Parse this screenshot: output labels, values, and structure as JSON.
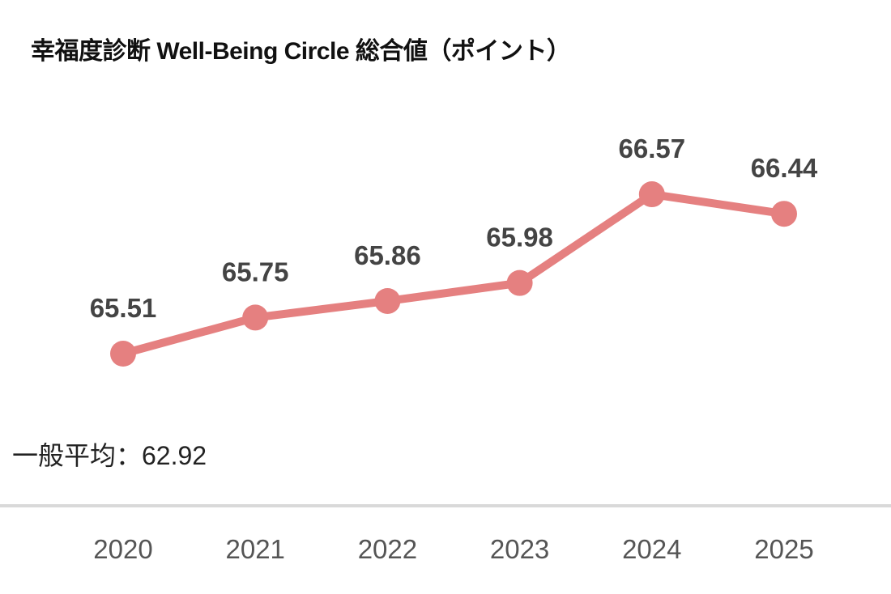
{
  "chart_data": {
    "type": "line",
    "title": "幸福度診断 Well-Being Circle 総合値（ポイント）",
    "categories": [
      "2020",
      "2021",
      "2022",
      "2023",
      "2024",
      "2025"
    ],
    "series": [
      {
        "name": "総合値",
        "values": [
          65.51,
          65.75,
          65.86,
          65.98,
          66.57,
          66.44
        ]
      }
    ],
    "value_labels": [
      "65.51",
      "65.75",
      "65.86",
      "65.98",
      "66.57",
      "66.44"
    ],
    "reference": {
      "label": "一般平均：62.92",
      "value": 62.92
    },
    "xlabel": "",
    "ylabel": "",
    "grid": false,
    "colors": {
      "line": "#e58080",
      "axis": "#d9d9d9"
    }
  }
}
